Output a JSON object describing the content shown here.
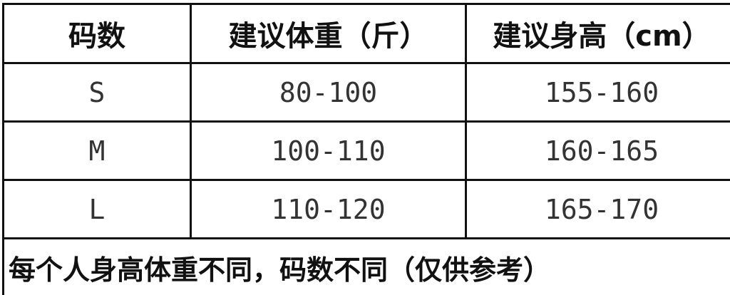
{
  "table": {
    "headers": [
      "码数",
      "建议体重（斤）",
      "建议身高（cm）"
    ],
    "rows": [
      [
        "S",
        "80-100",
        "155-160"
      ],
      [
        "M",
        "100-110",
        "160-165"
      ],
      [
        "L",
        "110-120",
        "165-170"
      ]
    ],
    "note": "每个人身高体重不同，码数不同（仅供参考）"
  }
}
